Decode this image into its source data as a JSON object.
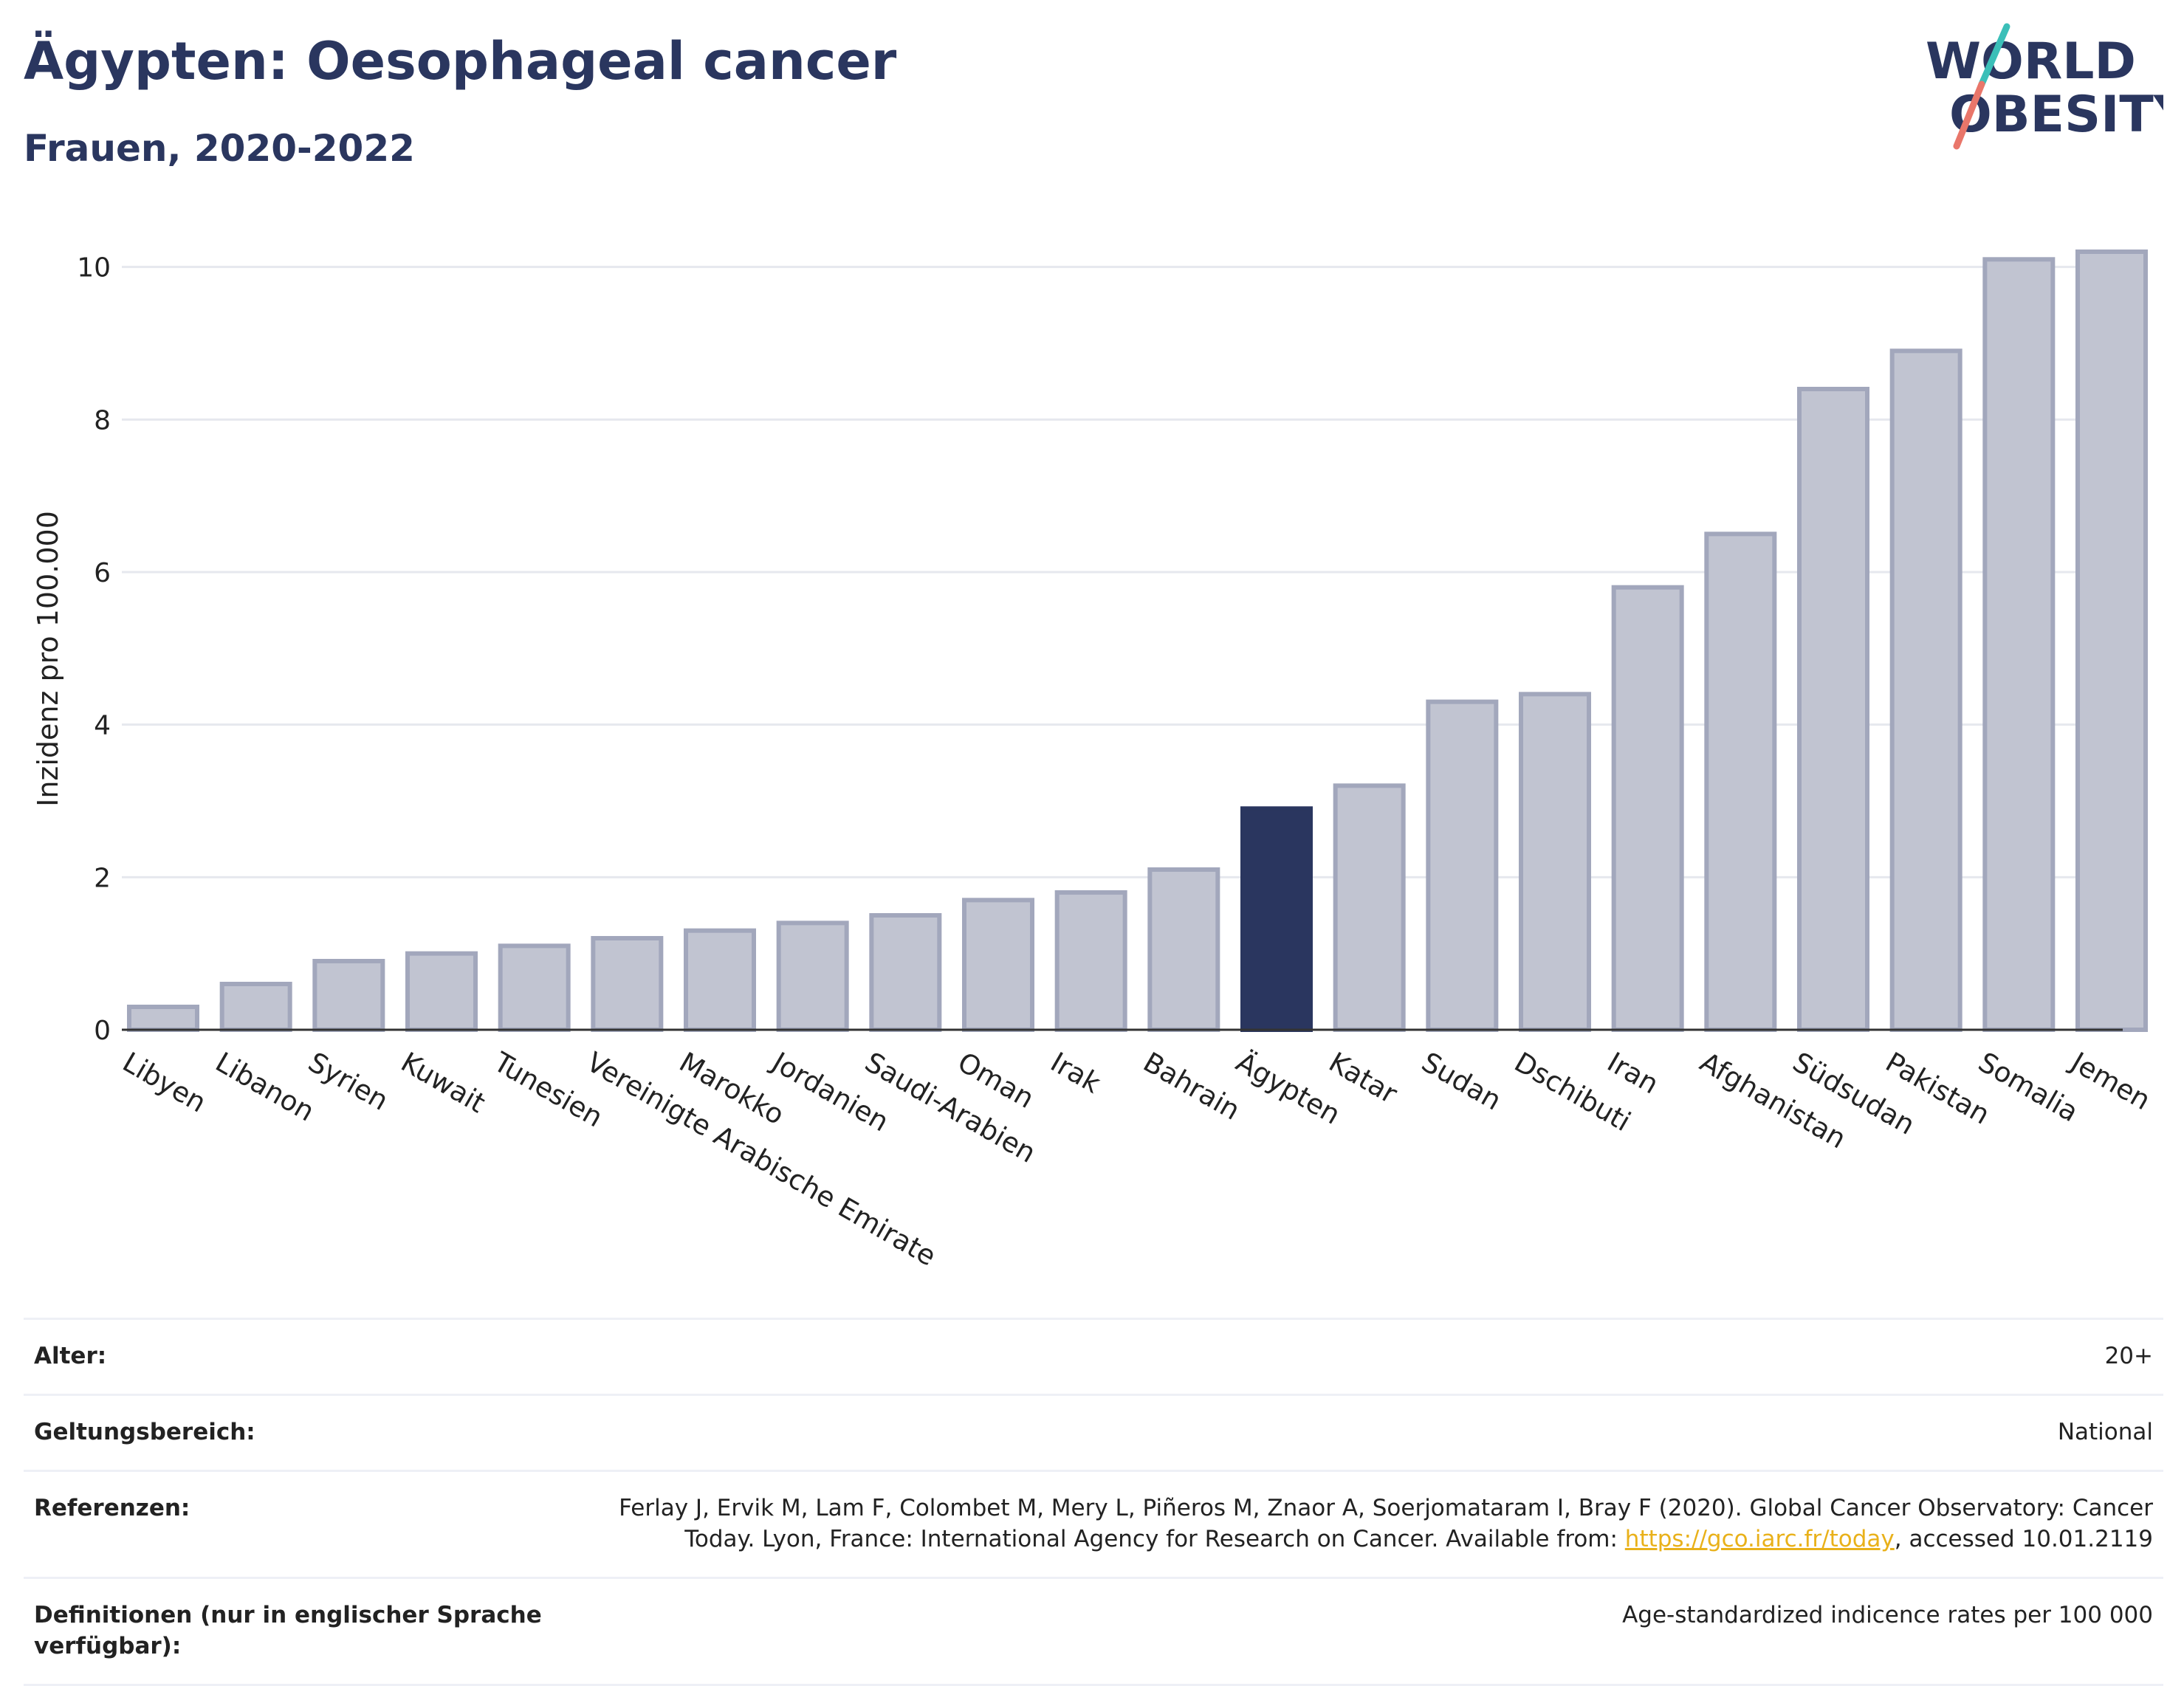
{
  "header": {
    "title": "Ägypten: Oesophageal cancer",
    "subtitle": "Frauen, 2020-2022"
  },
  "logo": {
    "line1": "WORLD",
    "line2": "OBESITY",
    "colors": {
      "navy": "#2a365f",
      "teal": "#3bbfb8",
      "coral": "#e9766a"
    }
  },
  "chart_data": {
    "type": "bar",
    "ylabel": "Inzidenz pro 100.000",
    "xlabel": "",
    "ylim": [
      0,
      10.5
    ],
    "yticks": [
      0,
      2,
      4,
      6,
      8,
      10
    ],
    "grid": true,
    "highlight": "Ägypten",
    "colors": {
      "bar": "#c1c4d1",
      "bar_border": "#a2a7bc",
      "highlight": "#2a365f",
      "grid": "#e6e8ee",
      "axis": "#333333"
    },
    "categories": [
      "Libyen",
      "Libanon",
      "Syrien",
      "Kuwait",
      "Tunesien",
      "Vereinigte Arabische Emirate",
      "Marokko",
      "Jordanien",
      "Saudi-Arabien",
      "Oman",
      "Irak",
      "Bahrain",
      "Ägypten",
      "Katar",
      "Sudan",
      "Dschibuti",
      "Iran",
      "Afghanistan",
      "Südsudan",
      "Pakistan",
      "Somalia",
      "Jemen"
    ],
    "values": [
      0.3,
      0.6,
      0.9,
      1.0,
      1.1,
      1.2,
      1.3,
      1.4,
      1.5,
      1.7,
      1.8,
      2.1,
      2.9,
      3.2,
      4.3,
      4.4,
      5.8,
      6.5,
      8.4,
      8.9,
      10.1,
      10.2
    ]
  },
  "meta": {
    "age_label": "Alter:",
    "age_value": "20+",
    "scope_label": "Geltungsbereich:",
    "scope_value": "National",
    "ref_label": "Referenzen:",
    "ref_text_1": "Ferlay J, Ervik M, Lam F, Colombet M, Mery L, Piñeros M, Znaor A, Soerjomataram I, Bray F (2020). Global Cancer Observatory: Cancer Today. Lyon, France: International Agency for Research on Cancer. Available from: ",
    "ref_link": "https://gco.iarc.fr/today",
    "ref_text_2": ", accessed 10.01.2119",
    "def_label": "Definitionen (nur in englischer Sprache verfügbar):",
    "def_value": "Age-standardized indicence rates per 100 000"
  }
}
